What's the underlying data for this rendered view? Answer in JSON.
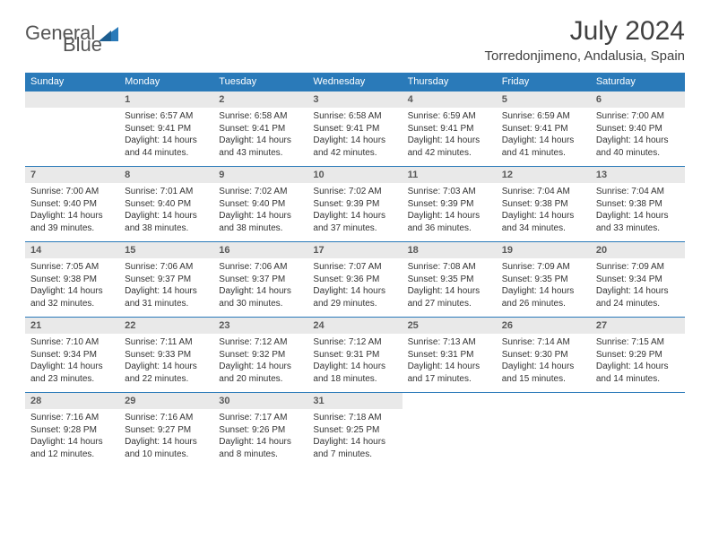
{
  "logo": {
    "word1": "General",
    "word2": "Blue"
  },
  "title": "July 2024",
  "location": "Torredonjimeno, Andalusia, Spain",
  "days_of_week": [
    "Sunday",
    "Monday",
    "Tuesday",
    "Wednesday",
    "Thursday",
    "Friday",
    "Saturday"
  ],
  "colors": {
    "header_bg": "#2a7ab9",
    "daynum_bg": "#e9e9e9",
    "rule": "#2a7ab9",
    "text": "#333333",
    "title_text": "#404040"
  },
  "weeks": [
    [
      null,
      {
        "n": "1",
        "sr": "6:57 AM",
        "ss": "9:41 PM",
        "dl": "14 hours and 44 minutes."
      },
      {
        "n": "2",
        "sr": "6:58 AM",
        "ss": "9:41 PM",
        "dl": "14 hours and 43 minutes."
      },
      {
        "n": "3",
        "sr": "6:58 AM",
        "ss": "9:41 PM",
        "dl": "14 hours and 42 minutes."
      },
      {
        "n": "4",
        "sr": "6:59 AM",
        "ss": "9:41 PM",
        "dl": "14 hours and 42 minutes."
      },
      {
        "n": "5",
        "sr": "6:59 AM",
        "ss": "9:41 PM",
        "dl": "14 hours and 41 minutes."
      },
      {
        "n": "6",
        "sr": "7:00 AM",
        "ss": "9:40 PM",
        "dl": "14 hours and 40 minutes."
      }
    ],
    [
      {
        "n": "7",
        "sr": "7:00 AM",
        "ss": "9:40 PM",
        "dl": "14 hours and 39 minutes."
      },
      {
        "n": "8",
        "sr": "7:01 AM",
        "ss": "9:40 PM",
        "dl": "14 hours and 38 minutes."
      },
      {
        "n": "9",
        "sr": "7:02 AM",
        "ss": "9:40 PM",
        "dl": "14 hours and 38 minutes."
      },
      {
        "n": "10",
        "sr": "7:02 AM",
        "ss": "9:39 PM",
        "dl": "14 hours and 37 minutes."
      },
      {
        "n": "11",
        "sr": "7:03 AM",
        "ss": "9:39 PM",
        "dl": "14 hours and 36 minutes."
      },
      {
        "n": "12",
        "sr": "7:04 AM",
        "ss": "9:38 PM",
        "dl": "14 hours and 34 minutes."
      },
      {
        "n": "13",
        "sr": "7:04 AM",
        "ss": "9:38 PM",
        "dl": "14 hours and 33 minutes."
      }
    ],
    [
      {
        "n": "14",
        "sr": "7:05 AM",
        "ss": "9:38 PM",
        "dl": "14 hours and 32 minutes."
      },
      {
        "n": "15",
        "sr": "7:06 AM",
        "ss": "9:37 PM",
        "dl": "14 hours and 31 minutes."
      },
      {
        "n": "16",
        "sr": "7:06 AM",
        "ss": "9:37 PM",
        "dl": "14 hours and 30 minutes."
      },
      {
        "n": "17",
        "sr": "7:07 AM",
        "ss": "9:36 PM",
        "dl": "14 hours and 29 minutes."
      },
      {
        "n": "18",
        "sr": "7:08 AM",
        "ss": "9:35 PM",
        "dl": "14 hours and 27 minutes."
      },
      {
        "n": "19",
        "sr": "7:09 AM",
        "ss": "9:35 PM",
        "dl": "14 hours and 26 minutes."
      },
      {
        "n": "20",
        "sr": "7:09 AM",
        "ss": "9:34 PM",
        "dl": "14 hours and 24 minutes."
      }
    ],
    [
      {
        "n": "21",
        "sr": "7:10 AM",
        "ss": "9:34 PM",
        "dl": "14 hours and 23 minutes."
      },
      {
        "n": "22",
        "sr": "7:11 AM",
        "ss": "9:33 PM",
        "dl": "14 hours and 22 minutes."
      },
      {
        "n": "23",
        "sr": "7:12 AM",
        "ss": "9:32 PM",
        "dl": "14 hours and 20 minutes."
      },
      {
        "n": "24",
        "sr": "7:12 AM",
        "ss": "9:31 PM",
        "dl": "14 hours and 18 minutes."
      },
      {
        "n": "25",
        "sr": "7:13 AM",
        "ss": "9:31 PM",
        "dl": "14 hours and 17 minutes."
      },
      {
        "n": "26",
        "sr": "7:14 AM",
        "ss": "9:30 PM",
        "dl": "14 hours and 15 minutes."
      },
      {
        "n": "27",
        "sr": "7:15 AM",
        "ss": "9:29 PM",
        "dl": "14 hours and 14 minutes."
      }
    ],
    [
      {
        "n": "28",
        "sr": "7:16 AM",
        "ss": "9:28 PM",
        "dl": "14 hours and 12 minutes."
      },
      {
        "n": "29",
        "sr": "7:16 AM",
        "ss": "9:27 PM",
        "dl": "14 hours and 10 minutes."
      },
      {
        "n": "30",
        "sr": "7:17 AM",
        "ss": "9:26 PM",
        "dl": "14 hours and 8 minutes."
      },
      {
        "n": "31",
        "sr": "7:18 AM",
        "ss": "9:25 PM",
        "dl": "14 hours and 7 minutes."
      },
      null,
      null,
      null
    ]
  ],
  "labels": {
    "sunrise": "Sunrise:",
    "sunset": "Sunset:",
    "daylight": "Daylight:"
  }
}
